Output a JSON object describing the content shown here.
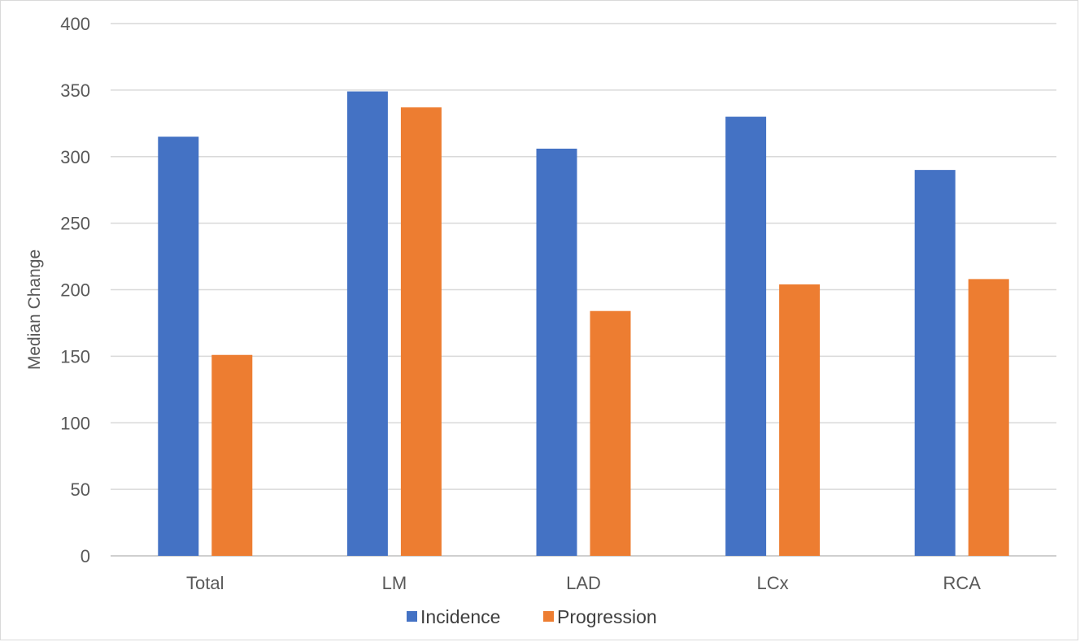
{
  "chart_data": {
    "type": "bar",
    "title": "",
    "xlabel": "",
    "ylabel": "Median Change",
    "categories": [
      "Total",
      "LM",
      "LAD",
      "LCx",
      "RCA"
    ],
    "series": [
      {
        "name": "Incidence",
        "color": "#4472c4",
        "values": [
          315,
          349,
          306,
          330,
          290
        ]
      },
      {
        "name": "Progression",
        "color": "#ed7d31",
        "values": [
          151,
          337,
          184,
          204,
          208
        ]
      }
    ],
    "ylim": [
      0,
      400
    ],
    "yticks": [
      0,
      50,
      100,
      150,
      200,
      250,
      300,
      350,
      400
    ],
    "grid": true,
    "legend_position": "bottom"
  }
}
